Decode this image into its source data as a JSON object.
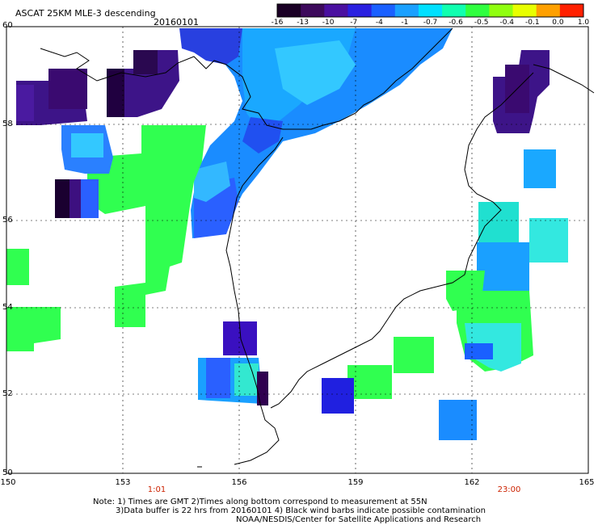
{
  "header": {
    "title": "ASCAT 25KM MLE-3 descending",
    "date": "20160101"
  },
  "colorbar": {
    "labels": [
      "-16",
      "-13",
      "-10",
      "-7",
      "-4",
      "-1",
      "-0.7",
      "-0.6",
      "-0.5",
      "-0.4",
      "-0.1",
      "0.0",
      "1.0"
    ],
    "colors": [
      "#1a0025",
      "#3d0a5c",
      "#4a10a0",
      "#2a20e0",
      "#1a60ff",
      "#1aa0ff",
      "#00e0ff",
      "#10ffb0",
      "#30ff40",
      "#90ff10",
      "#e8ff00",
      "#ffa000",
      "#ff2000"
    ]
  },
  "axes": {
    "lon_labels": [
      "150",
      "153",
      "156",
      "159",
      "162",
      "165"
    ],
    "lat_labels": [
      "60",
      "58",
      "56",
      "54",
      "52",
      "50"
    ],
    "time_labels": [
      "1:01",
      "23:00"
    ],
    "time_color": "#cc2200"
  },
  "footer": {
    "line1": "Note: 1) Times are GMT 2)Times along bottom correspond to measurement at 55N",
    "line2": "3)Data buffer is 22 hrs from 20160101 4) Black wind barbs indicate possible contamination",
    "line3": "NOAA/NESDIS/Center for Satellite Applications and Research"
  },
  "map_extent": {
    "lon": [
      150,
      165
    ],
    "lat": [
      50,
      60
    ]
  }
}
